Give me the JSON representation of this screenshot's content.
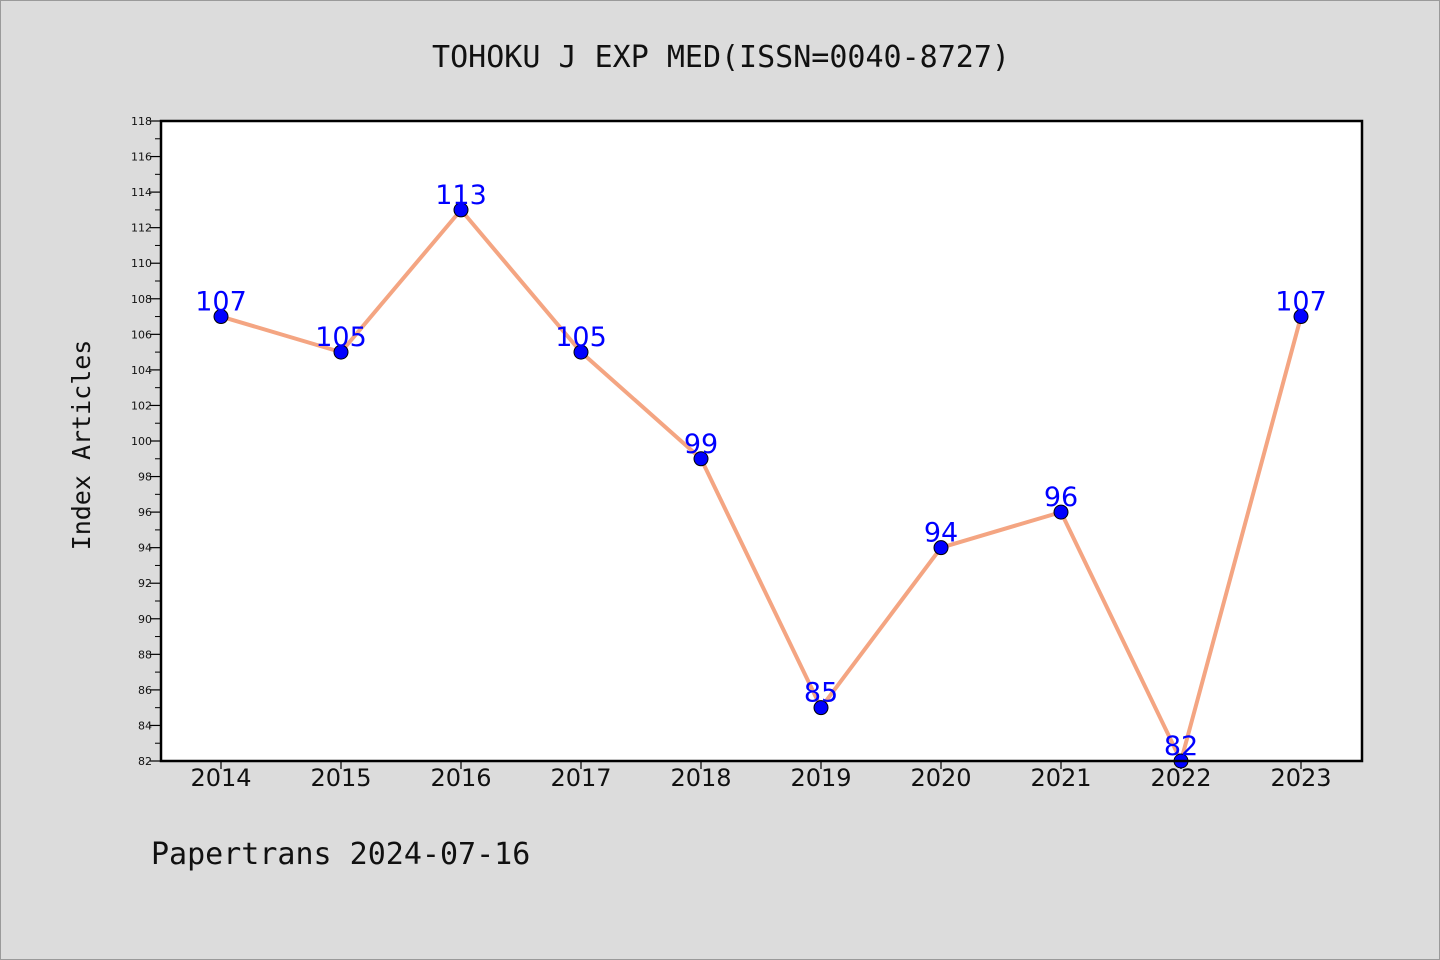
{
  "chart_data": {
    "type": "line",
    "title": "TOHOKU J EXP MED(ISSN=0040-8727)",
    "xlabel": "",
    "ylabel": "Index Articles",
    "categories": [
      "2014",
      "2015",
      "2016",
      "2017",
      "2018",
      "2019",
      "2020",
      "2021",
      "2022",
      "2023"
    ],
    "series": [
      {
        "values": [
          107,
          105,
          113,
          105,
          99,
          85,
          94,
          96,
          82,
          107
        ]
      }
    ],
    "ylim": [
      82,
      118
    ],
    "yticks": [
      82,
      84,
      86,
      88,
      90,
      92,
      94,
      96,
      98,
      100,
      102,
      104,
      106,
      108,
      110,
      112,
      114,
      116,
      118
    ],
    "grid": false,
    "legend": "none",
    "line_color": "#f4a582",
    "marker_color": "#0000ff",
    "label_color": "#0000ff"
  },
  "footer": {
    "text": "Papertrans 2024-07-16"
  }
}
